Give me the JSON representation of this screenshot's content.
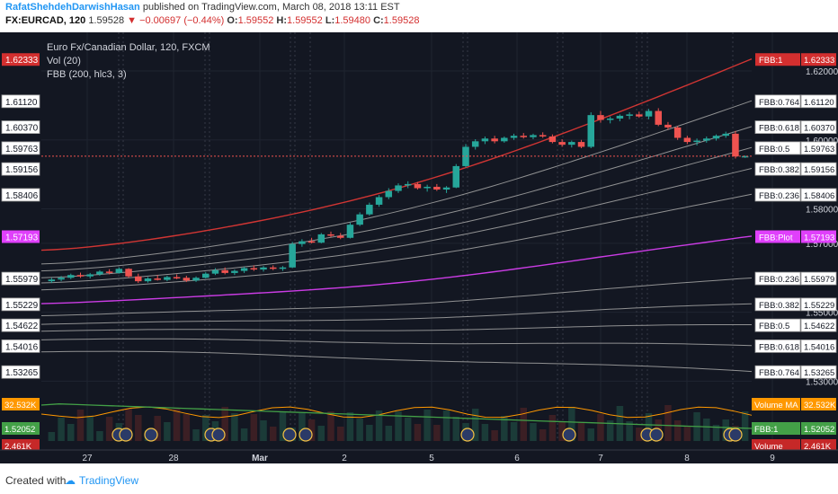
{
  "header": {
    "author": "RafatShehdehDarwishHasan",
    "published": "published on TradingView.com, March 08, 2018 13:11 EST",
    "symbol": "FX:EURCAD, 120",
    "last": "1.59528",
    "change": "▼ −0.00697 (−0.44%)",
    "ohlc_o_label": "O:",
    "ohlc_o": "1.59552",
    "ohlc_h_label": "H:",
    "ohlc_h": "1.59552",
    "ohlc_l_label": "L:",
    "ohlc_l": "1.59480",
    "ohlc_c_label": "C:",
    "ohlc_c": "1.59528"
  },
  "legend": {
    "title": "Euro Fx/Canadian Dollar, 120, FXCM",
    "vol": "Vol (20)",
    "fbb": "FBB (200, hlc3, 3)"
  },
  "footer": {
    "created": "Created with",
    "brand": "TradingView"
  },
  "colors": {
    "background": "#131722",
    "up": "#26a69a",
    "down": "#ef5350",
    "basis": "#e040fb",
    "upper": "#e53935",
    "lower": "#43a047",
    "band": "#9e9e9e",
    "volume_ma": "#ff9800"
  },
  "chart_data": {
    "type": "candlestick",
    "x_ticks": [
      "27",
      "28",
      "Mar",
      "2",
      "5",
      "6",
      "7",
      "8",
      "9"
    ],
    "price_ticks": [
      "1.62000",
      "1.60000",
      "1.58000",
      "1.57000",
      "1.55000",
      "1.53000"
    ],
    "ylim": [
      1.5275,
      1.626
    ],
    "left_axis": [
      {
        "value": 1.62333,
        "label": "1.62333",
        "color": "#d32f2f"
      },
      {
        "value": 1.6112,
        "label": "1.61120",
        "color": ""
      },
      {
        "value": 1.6037,
        "label": "1.60370",
        "color": ""
      },
      {
        "value": 1.59763,
        "label": "1.59763",
        "color": ""
      },
      {
        "value": 1.59156,
        "label": "1.59156",
        "color": ""
      },
      {
        "value": 1.58406,
        "label": "1.58406",
        "color": ""
      },
      {
        "value": 1.57193,
        "label": "1.57193",
        "color": "#e040fb"
      },
      {
        "value": 1.55979,
        "label": "1.55979",
        "color": ""
      },
      {
        "value": 1.55229,
        "label": "1.55229",
        "color": ""
      },
      {
        "value": 1.54622,
        "label": "1.54622",
        "color": ""
      },
      {
        "value": 1.54016,
        "label": "1.54016",
        "color": ""
      },
      {
        "value": 1.53265,
        "label": "1.53265",
        "color": ""
      }
    ],
    "right_labels": [
      {
        "value": 1.62333,
        "name": "FBB:1",
        "label": "1.62333",
        "color": "#d32f2f"
      },
      {
        "value": 1.6112,
        "name": "FBB:0.764",
        "label": "1.61120",
        "color": ""
      },
      {
        "value": 1.6037,
        "name": "FBB:0.618",
        "label": "1.60370",
        "color": ""
      },
      {
        "value": 1.59763,
        "name": "FBB:0.5",
        "label": "1.59763",
        "color": ""
      },
      {
        "value": 1.59156,
        "name": "FBB:0.382",
        "label": "1.59156",
        "color": ""
      },
      {
        "value": 1.58406,
        "name": "FBB:0.236",
        "label": "1.58406",
        "color": ""
      },
      {
        "value": 1.57193,
        "name": "FBB:Plot",
        "label": "1.57193",
        "color": "#e040fb"
      },
      {
        "value": 1.55979,
        "name": "FBB:0.236",
        "label": "1.55979",
        "color": ""
      },
      {
        "value": 1.55229,
        "name": "FBB:0.382",
        "label": "1.55229",
        "color": ""
      },
      {
        "value": 1.54622,
        "name": "FBB:0.5",
        "label": "1.54622",
        "color": ""
      },
      {
        "value": 1.54016,
        "name": "FBB:0.618",
        "label": "1.54016",
        "color": ""
      },
      {
        "value": 1.53265,
        "name": "FBB:0.764",
        "label": "1.53265",
        "color": ""
      }
    ],
    "volume_labels": [
      {
        "left": "32.532K",
        "right_name": "Volume MA",
        "right": "32.532K",
        "color": "#ff9800"
      },
      {
        "left": "1.52052",
        "right_name": "FBB:1",
        "right": "1.52052",
        "color": "#43a047"
      },
      {
        "left": "2.461K",
        "right_name": "Volume",
        "right": "2.461K",
        "color": "#c62828"
      }
    ],
    "candles": [
      [
        1.559,
        1.56,
        1.5585,
        1.5595
      ],
      [
        1.5595,
        1.5605,
        1.559,
        1.56
      ],
      [
        1.56,
        1.5612,
        1.5596,
        1.5608
      ],
      [
        1.5608,
        1.5615,
        1.56,
        1.5604
      ],
      [
        1.5604,
        1.5614,
        1.5598,
        1.561
      ],
      [
        1.561,
        1.5622,
        1.5606,
        1.5618
      ],
      [
        1.5618,
        1.5625,
        1.561,
        1.5614
      ],
      [
        1.5614,
        1.563,
        1.5612,
        1.5626
      ],
      [
        1.5626,
        1.5628,
        1.56,
        1.5604
      ],
      [
        1.5604,
        1.5612,
        1.5585,
        1.559
      ],
      [
        1.559,
        1.5602,
        1.5586,
        1.5598
      ],
      [
        1.5598,
        1.5608,
        1.5592,
        1.5594
      ],
      [
        1.5594,
        1.5606,
        1.559,
        1.5602
      ],
      [
        1.5602,
        1.561,
        1.5596,
        1.56
      ],
      [
        1.56,
        1.5606,
        1.5588,
        1.5592
      ],
      [
        1.5592,
        1.5604,
        1.5588,
        1.56
      ],
      [
        1.56,
        1.5616,
        1.5598,
        1.5612
      ],
      [
        1.5612,
        1.5628,
        1.5608,
        1.5622
      ],
      [
        1.5622,
        1.563,
        1.561,
        1.5614
      ],
      [
        1.5614,
        1.5624,
        1.5608,
        1.562
      ],
      [
        1.562,
        1.5632,
        1.5614,
        1.5628
      ],
      [
        1.5628,
        1.5636,
        1.562,
        1.5624
      ],
      [
        1.5624,
        1.5634,
        1.5618,
        1.563
      ],
      [
        1.563,
        1.5636,
        1.5622,
        1.5626
      ],
      [
        1.5626,
        1.5634,
        1.562,
        1.563
      ],
      [
        1.563,
        1.5704,
        1.5628,
        1.5698
      ],
      [
        1.5698,
        1.5712,
        1.569,
        1.5706
      ],
      [
        1.5706,
        1.5716,
        1.57,
        1.5702
      ],
      [
        1.5702,
        1.573,
        1.57,
        1.5726
      ],
      [
        1.5726,
        1.5734,
        1.5718,
        1.5722
      ],
      [
        1.5722,
        1.573,
        1.5712,
        1.5716
      ],
      [
        1.5716,
        1.576,
        1.5714,
        1.5754
      ],
      [
        1.5754,
        1.579,
        1.575,
        1.5784
      ],
      [
        1.5784,
        1.5818,
        1.578,
        1.5812
      ],
      [
        1.5812,
        1.584,
        1.5806,
        1.5834
      ],
      [
        1.5834,
        1.586,
        1.5828,
        1.5852
      ],
      [
        1.5852,
        1.5874,
        1.5846,
        1.5868
      ],
      [
        1.5868,
        1.588,
        1.586,
        1.5872
      ],
      [
        1.5872,
        1.5878,
        1.5856,
        1.586
      ],
      [
        1.586,
        1.587,
        1.585,
        1.5864
      ],
      [
        1.5864,
        1.5872,
        1.5852,
        1.5856
      ],
      [
        1.5856,
        1.5866,
        1.5846,
        1.5862
      ],
      [
        1.5862,
        1.593,
        1.586,
        1.5924
      ],
      [
        1.5924,
        1.5988,
        1.592,
        1.598
      ],
      [
        1.598,
        1.6002,
        1.5972,
        1.5996
      ],
      [
        1.5996,
        1.601,
        1.5988,
        1.6004
      ],
      [
        1.6004,
        1.6012,
        1.599,
        1.5996
      ],
      [
        1.5996,
        1.601,
        1.5992,
        1.6006
      ],
      [
        1.6006,
        1.6018,
        1.6,
        1.6012
      ],
      [
        1.6012,
        1.602,
        1.6004,
        1.6008
      ],
      [
        1.6008,
        1.6018,
        1.6002,
        1.6014
      ],
      [
        1.6014,
        1.6022,
        1.6006,
        1.601
      ],
      [
        1.601,
        1.6016,
        1.599,
        1.5994
      ],
      [
        1.5994,
        1.6002,
        1.598,
        1.5986
      ],
      [
        1.5986,
        1.5998,
        1.5978,
        1.5994
      ],
      [
        1.5994,
        1.6,
        1.5976,
        1.598
      ],
      [
        1.598,
        1.608,
        1.5976,
        1.6072
      ],
      [
        1.6072,
        1.6084,
        1.605,
        1.6058
      ],
      [
        1.6058,
        1.6068,
        1.6048,
        1.6062
      ],
      [
        1.6062,
        1.6074,
        1.6054,
        1.607
      ],
      [
        1.607,
        1.608,
        1.606,
        1.6074
      ],
      [
        1.6074,
        1.6082,
        1.6064,
        1.6068
      ],
      [
        1.6068,
        1.609,
        1.606,
        1.6084
      ],
      [
        1.6084,
        1.6092,
        1.604,
        1.6044
      ],
      [
        1.6044,
        1.6052,
        1.603,
        1.6036
      ],
      [
        1.6036,
        1.604,
        1.6,
        1.6006
      ],
      [
        1.6006,
        1.6012,
        1.5988,
        1.5994
      ],
      [
        1.5994,
        1.6004,
        1.5984,
        1.5998
      ],
      [
        1.5998,
        1.601,
        1.5992,
        1.6004
      ],
      [
        1.6004,
        1.6016,
        1.5998,
        1.6012
      ],
      [
        1.6012,
        1.6024,
        1.6006,
        1.6018
      ],
      [
        1.6018,
        1.6026,
        1.5946,
        1.5952
      ],
      [
        1.5952,
        1.5955,
        1.5948,
        1.5953
      ]
    ]
  }
}
